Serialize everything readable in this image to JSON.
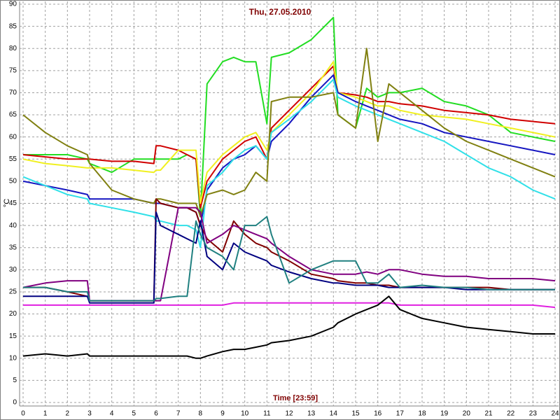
{
  "chart_data": {
    "type": "line",
    "title": "Thu, 27.05.2010",
    "xlabel": "Time [23:59]",
    "ylabel": "°C",
    "x": [
      0,
      1,
      2,
      2.9,
      3,
      4,
      5,
      5.9,
      6,
      6.2,
      7,
      7.4,
      7.8,
      8,
      8.3,
      9,
      9.5,
      10,
      10.5,
      11,
      11.2,
      12,
      13,
      14,
      14.2,
      15,
      15.5,
      16,
      16.5,
      17,
      18,
      19,
      20,
      21,
      22,
      23,
      24
    ],
    "xlim": [
      0,
      24
    ],
    "xticks": [
      0,
      1,
      2,
      3,
      4,
      5,
      6,
      7,
      8,
      9,
      10,
      11,
      12,
      13,
      14,
      15,
      16,
      17,
      18,
      19,
      20,
      21,
      22,
      23,
      24
    ],
    "ylim": [
      0,
      90
    ],
    "yticks": [
      0,
      5,
      10,
      15,
      20,
      25,
      30,
      35,
      40,
      45,
      50,
      55,
      60,
      65,
      70,
      75,
      80,
      85,
      90
    ],
    "grid": true,
    "series": [
      {
        "color": "#22dd22",
        "values": [
          56,
          56,
          56,
          55,
          54,
          52,
          55,
          55,
          55,
          55,
          55,
          56,
          55,
          42,
          72,
          77,
          78,
          77,
          77,
          63,
          78,
          79,
          82,
          87,
          65,
          62,
          71,
          69,
          70,
          70,
          71,
          68,
          67,
          65,
          61,
          60,
          59
        ]
      },
      {
        "color": "#d00000",
        "values": [
          56,
          55.5,
          55,
          55,
          55,
          54.5,
          54.5,
          54,
          58,
          58,
          57,
          56,
          55,
          44,
          50,
          55,
          57,
          59,
          60,
          55,
          62,
          66,
          71,
          76,
          70,
          69.5,
          69,
          68,
          68,
          67.5,
          67,
          66,
          65.5,
          65,
          64,
          63.5,
          63
        ]
      },
      {
        "color": "#f0f020",
        "values": [
          55,
          54,
          53.5,
          53,
          53,
          53,
          52.5,
          52,
          52.5,
          52.5,
          57,
          57,
          57,
          45,
          52,
          56,
          58,
          60,
          61,
          57,
          61,
          65,
          70,
          77,
          70,
          69,
          68,
          67,
          67,
          66,
          65,
          64.5,
          64,
          63,
          62,
          61,
          60
        ]
      },
      {
        "color": "#1515c0",
        "values": [
          50,
          49,
          48,
          47,
          46,
          46,
          46,
          45,
          45,
          45,
          44,
          44,
          43,
          40,
          48,
          53,
          55,
          56,
          58,
          55,
          59,
          63,
          69,
          74,
          70,
          68,
          67,
          66,
          65,
          64,
          63,
          61,
          60,
          59,
          58,
          57,
          56
        ]
      },
      {
        "color": "#30e0e8",
        "values": [
          51,
          49,
          47,
          46,
          45,
          44,
          43,
          42,
          41,
          41,
          40,
          40,
          39,
          35,
          49,
          52,
          55,
          57,
          58,
          55,
          61,
          64,
          68,
          73,
          69,
          67,
          66,
          65,
          64,
          63,
          61,
          59,
          56,
          53,
          51,
          48,
          46
        ]
      },
      {
        "color": "#808010",
        "values": [
          65,
          61,
          58,
          56,
          54,
          48,
          46,
          45,
          46,
          46,
          45,
          45,
          45,
          42,
          47,
          48,
          47,
          48,
          52,
          50,
          68,
          69,
          69,
          70,
          65,
          62,
          80,
          59,
          72,
          70,
          66,
          62,
          59,
          57,
          55,
          53,
          51
        ]
      },
      {
        "color": "#800000",
        "values": [
          26,
          26,
          25,
          24,
          23,
          23,
          23,
          23,
          46,
          45,
          44,
          44,
          43,
          40,
          37,
          34,
          41,
          38,
          36,
          35,
          34,
          32,
          29,
          28,
          27.5,
          27,
          27,
          26.5,
          26.5,
          26,
          26,
          26,
          26,
          26,
          25.5,
          25.5,
          25.5
        ]
      },
      {
        "color": "#800080",
        "values": [
          26,
          27,
          27.5,
          27.5,
          23,
          23,
          23,
          23,
          23,
          23,
          44,
          44,
          44,
          43,
          36,
          38,
          40,
          39,
          38,
          37,
          36,
          33,
          30,
          29,
          29,
          29,
          29.5,
          29,
          30,
          30,
          29,
          28.5,
          28.5,
          28,
          28,
          28,
          27.5
        ]
      },
      {
        "color": "#000080",
        "values": [
          24,
          24,
          24,
          24,
          22.5,
          22.5,
          22.5,
          22.5,
          43,
          40,
          38,
          37,
          36,
          41,
          33,
          30,
          36,
          34,
          33,
          32,
          31,
          29.5,
          28,
          27,
          27,
          26.5,
          26.5,
          26.5,
          26,
          26,
          26,
          26,
          25.5,
          25.5,
          25.5,
          25.5,
          25.5
        ]
      },
      {
        "color": "#208080",
        "values": [
          26,
          26,
          25,
          25,
          23,
          23,
          23,
          23,
          23.5,
          23.5,
          24,
          24,
          41,
          38,
          35,
          33,
          30,
          40,
          40,
          42,
          38,
          27,
          30,
          32,
          32,
          32,
          27,
          27,
          29,
          26,
          26.5,
          26,
          26,
          25.5,
          25.5,
          25.5,
          25.5
        ]
      },
      {
        "color": "#e020e0",
        "values": [
          22,
          22,
          22,
          22,
          22,
          22,
          22,
          22,
          22,
          22,
          22,
          22,
          22,
          22,
          22,
          22,
          22.5,
          22.5,
          22.5,
          22.5,
          22.5,
          22.5,
          22.5,
          22.5,
          22.5,
          22.5,
          22.5,
          22.5,
          22.5,
          22,
          22,
          22,
          22,
          22,
          22,
          22,
          21.5
        ]
      },
      {
        "color": "#000000",
        "values": [
          10.5,
          11,
          10.5,
          11,
          10.5,
          10.5,
          10.5,
          10.5,
          10.5,
          10.5,
          10.5,
          10.5,
          10,
          10,
          10.5,
          11.5,
          12,
          12,
          12.5,
          13,
          13.5,
          14,
          15,
          17,
          18,
          20,
          21,
          22,
          24,
          21,
          19,
          18,
          17,
          16.5,
          16,
          15.5,
          15.5
        ]
      }
    ]
  }
}
